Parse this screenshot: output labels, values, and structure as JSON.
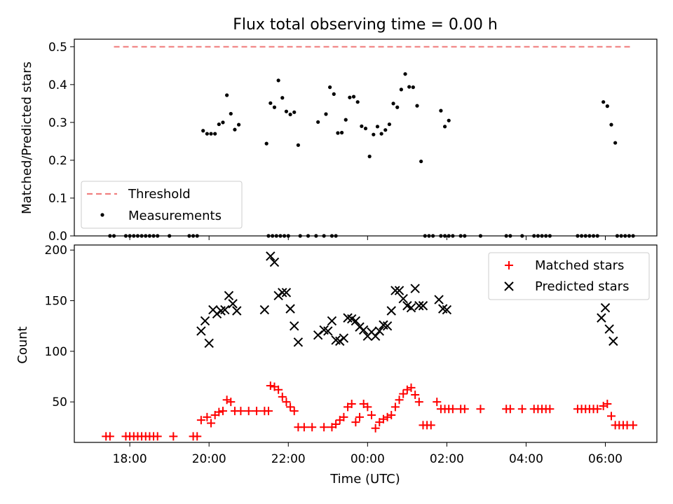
{
  "chart_data": {
    "title": "Flux total observing time = 0.00 h",
    "xlabel": "Time (UTC)",
    "x_unit": "hours relative to 00:00 UTC",
    "xlim": [
      -7.4,
      7.3
    ],
    "xticks": [
      {
        "value": -6,
        "label": "18:00"
      },
      {
        "value": -4,
        "label": "20:00"
      },
      {
        "value": -2,
        "label": "22:00"
      },
      {
        "value": 0,
        "label": "00:00"
      },
      {
        "value": 2,
        "label": "02:00"
      },
      {
        "value": 4,
        "label": "04:00"
      },
      {
        "value": 6,
        "label": "06:00"
      }
    ],
    "top": {
      "type": "scatter",
      "ylabel": "Matched/Predicted stars",
      "ylim": [
        0,
        0.52
      ],
      "yticks": [
        {
          "value": 0.0,
          "label": "0.0"
        },
        {
          "value": 0.1,
          "label": "0.1"
        },
        {
          "value": 0.2,
          "label": "0.2"
        },
        {
          "value": 0.3,
          "label": "0.3"
        },
        {
          "value": 0.4,
          "label": "0.4"
        },
        {
          "value": 0.5,
          "label": "0.5"
        }
      ],
      "legend": {
        "placement": "lower-left",
        "threshold_label": "Threshold",
        "measurements_label": "Measurements"
      },
      "threshold": {
        "name": "Threshold",
        "value": 0.5,
        "x_start": -6.4,
        "x_end": 6.7,
        "color": "#f08080"
      },
      "measurements": {
        "name": "Measurements",
        "color": "#000000",
        "points": [
          [
            -6.5,
            0
          ],
          [
            -6.4,
            0
          ],
          [
            -6.1,
            0
          ],
          [
            -6.0,
            0
          ],
          [
            -5.9,
            0
          ],
          [
            -5.8,
            0
          ],
          [
            -5.7,
            0
          ],
          [
            -5.6,
            0
          ],
          [
            -5.5,
            0
          ],
          [
            -5.4,
            0
          ],
          [
            -5.3,
            0
          ],
          [
            -5.0,
            0
          ],
          [
            -4.5,
            0
          ],
          [
            -4.4,
            0
          ],
          [
            -4.3,
            0
          ],
          [
            -4.15,
            0.278
          ],
          [
            -4.05,
            0.27
          ],
          [
            -3.95,
            0.27
          ],
          [
            -3.85,
            0.27
          ],
          [
            -3.75,
            0.295
          ],
          [
            -3.65,
            0.3
          ],
          [
            -3.55,
            0.372
          ],
          [
            -3.45,
            0.323
          ],
          [
            -3.35,
            0.281
          ],
          [
            -3.25,
            0.294
          ],
          [
            -2.5,
            0
          ],
          [
            -2.4,
            0
          ],
          [
            -2.3,
            0
          ],
          [
            -2.2,
            0
          ],
          [
            -2.1,
            0
          ],
          [
            -2.0,
            0
          ],
          [
            -2.55,
            0.244
          ],
          [
            -2.45,
            0.351
          ],
          [
            -2.35,
            0.34
          ],
          [
            -2.25,
            0.411
          ],
          [
            -2.15,
            0.365
          ],
          [
            -2.05,
            0.329
          ],
          [
            -1.95,
            0.321
          ],
          [
            -1.85,
            0.327
          ],
          [
            -1.75,
            0.24
          ],
          [
            -1.7,
            0
          ],
          [
            -1.5,
            0
          ],
          [
            -1.3,
            0
          ],
          [
            -1.1,
            0
          ],
          [
            -0.9,
            0
          ],
          [
            -0.8,
            0
          ],
          [
            -1.25,
            0.301
          ],
          [
            -1.05,
            0.322
          ],
          [
            -0.95,
            0.393
          ],
          [
            -0.85,
            0.375
          ],
          [
            -0.75,
            0.272
          ],
          [
            -0.65,
            0.273
          ],
          [
            -0.55,
            0.307
          ],
          [
            -0.45,
            0.366
          ],
          [
            -0.35,
            0.368
          ],
          [
            -0.25,
            0.354
          ],
          [
            -0.15,
            0.29
          ],
          [
            -0.05,
            0.284
          ],
          [
            0.05,
            0.21
          ],
          [
            0.15,
            0.268
          ],
          [
            0.25,
            0.289
          ],
          [
            0.35,
            0.27
          ],
          [
            0.45,
            0.28
          ],
          [
            0.55,
            0.295
          ],
          [
            0.65,
            0.35
          ],
          [
            0.75,
            0.34
          ],
          [
            0.85,
            0.387
          ],
          [
            0.95,
            0.428
          ],
          [
            1.05,
            0.394
          ],
          [
            1.15,
            0.393
          ],
          [
            1.25,
            0.344
          ],
          [
            1.35,
            0.197
          ],
          [
            1.45,
            0
          ],
          [
            1.55,
            0
          ],
          [
            1.65,
            0
          ],
          [
            1.85,
            0
          ],
          [
            1.95,
            0
          ],
          [
            2.05,
            0
          ],
          [
            2.15,
            0
          ],
          [
            2.35,
            0
          ],
          [
            2.45,
            0
          ],
          [
            2.85,
            0
          ],
          [
            3.5,
            0
          ],
          [
            3.6,
            0
          ],
          [
            3.9,
            0
          ],
          [
            4.2,
            0
          ],
          [
            4.3,
            0
          ],
          [
            4.4,
            0
          ],
          [
            4.5,
            0
          ],
          [
            4.6,
            0
          ],
          [
            1.85,
            0.331
          ],
          [
            1.95,
            0.289
          ],
          [
            2.05,
            0.305
          ],
          [
            5.3,
            0
          ],
          [
            5.4,
            0
          ],
          [
            5.5,
            0
          ],
          [
            5.6,
            0
          ],
          [
            5.7,
            0
          ],
          [
            5.8,
            0
          ],
          [
            5.95,
            0.354
          ],
          [
            6.05,
            0.343
          ],
          [
            6.15,
            0.294
          ],
          [
            6.25,
            0.246
          ],
          [
            6.3,
            0
          ],
          [
            6.4,
            0
          ],
          [
            6.5,
            0
          ],
          [
            6.6,
            0
          ],
          [
            6.7,
            0
          ]
        ]
      }
    },
    "bottom": {
      "type": "scatter",
      "ylabel": "Count",
      "ylim": [
        10,
        205
      ],
      "yticks": [
        {
          "value": 50,
          "label": "50"
        },
        {
          "value": 100,
          "label": "100"
        },
        {
          "value": 150,
          "label": "150"
        },
        {
          "value": 200,
          "label": "200"
        }
      ],
      "legend": {
        "placement": "upper-right",
        "matched_label": "Matched stars",
        "predicted_label": "Predicted stars"
      },
      "matched": {
        "name": "Matched stars",
        "color": "#ff0000",
        "points": [
          [
            -6.6,
            16
          ],
          [
            -6.5,
            16
          ],
          [
            -6.1,
            16
          ],
          [
            -6.0,
            16
          ],
          [
            -5.9,
            16
          ],
          [
            -5.8,
            16
          ],
          [
            -5.7,
            16
          ],
          [
            -5.6,
            16
          ],
          [
            -5.5,
            16
          ],
          [
            -5.4,
            16
          ],
          [
            -5.3,
            16
          ],
          [
            -4.9,
            16
          ],
          [
            -4.4,
            16
          ],
          [
            -4.3,
            16
          ],
          [
            -4.2,
            32
          ],
          [
            -4.05,
            35
          ],
          [
            -3.95,
            29
          ],
          [
            -3.85,
            37
          ],
          [
            -3.75,
            40
          ],
          [
            -3.65,
            41
          ],
          [
            -3.55,
            52
          ],
          [
            -3.45,
            50
          ],
          [
            -3.35,
            41
          ],
          [
            -3.2,
            41
          ],
          [
            -3.0,
            41
          ],
          [
            -2.8,
            41
          ],
          [
            -2.6,
            41
          ],
          [
            -2.5,
            41
          ],
          [
            -2.45,
            66
          ],
          [
            -2.35,
            65
          ],
          [
            -2.25,
            62
          ],
          [
            -2.15,
            55
          ],
          [
            -2.05,
            50
          ],
          [
            -1.95,
            45
          ],
          [
            -1.85,
            41
          ],
          [
            -1.75,
            25
          ],
          [
            -1.6,
            25
          ],
          [
            -1.4,
            25
          ],
          [
            -1.1,
            25
          ],
          [
            -0.9,
            25
          ],
          [
            -0.8,
            28
          ],
          [
            -0.7,
            32
          ],
          [
            -0.6,
            35
          ],
          [
            -0.5,
            45
          ],
          [
            -0.4,
            48
          ],
          [
            -0.3,
            30
          ],
          [
            -0.2,
            35
          ],
          [
            -0.1,
            48
          ],
          [
            0.0,
            45
          ],
          [
            0.1,
            37
          ],
          [
            0.2,
            24
          ],
          [
            0.3,
            30
          ],
          [
            0.4,
            33
          ],
          [
            0.5,
            35
          ],
          [
            0.6,
            37
          ],
          [
            0.7,
            45
          ],
          [
            0.8,
            52
          ],
          [
            0.9,
            58
          ],
          [
            1.0,
            62
          ],
          [
            1.1,
            64
          ],
          [
            1.2,
            57
          ],
          [
            1.3,
            50
          ],
          [
            1.4,
            27
          ],
          [
            1.5,
            27
          ],
          [
            1.6,
            27
          ],
          [
            1.75,
            50
          ],
          [
            1.85,
            43
          ],
          [
            1.95,
            43
          ],
          [
            2.05,
            43
          ],
          [
            2.15,
            43
          ],
          [
            2.35,
            43
          ],
          [
            2.45,
            43
          ],
          [
            2.85,
            43
          ],
          [
            3.5,
            43
          ],
          [
            3.6,
            43
          ],
          [
            3.9,
            43
          ],
          [
            4.2,
            43
          ],
          [
            4.3,
            43
          ],
          [
            4.4,
            43
          ],
          [
            4.5,
            43
          ],
          [
            4.6,
            43
          ],
          [
            5.3,
            43
          ],
          [
            5.4,
            43
          ],
          [
            5.5,
            43
          ],
          [
            5.6,
            43
          ],
          [
            5.7,
            43
          ],
          [
            5.8,
            43
          ],
          [
            5.95,
            46
          ],
          [
            6.05,
            48
          ],
          [
            6.15,
            36
          ],
          [
            6.25,
            27
          ],
          [
            6.35,
            27
          ],
          [
            6.45,
            27
          ],
          [
            6.55,
            27
          ],
          [
            6.7,
            27
          ]
        ]
      },
      "predicted": {
        "name": "Predicted stars",
        "color": "#000000",
        "points": [
          [
            -4.2,
            120
          ],
          [
            -4.1,
            130
          ],
          [
            -4.0,
            108
          ],
          [
            -3.9,
            141
          ],
          [
            -3.8,
            137
          ],
          [
            -3.7,
            140
          ],
          [
            -3.6,
            141
          ],
          [
            -3.5,
            155
          ],
          [
            -3.4,
            147
          ],
          [
            -3.3,
            140
          ],
          [
            -2.6,
            141
          ],
          [
            -2.45,
            194
          ],
          [
            -2.35,
            188
          ],
          [
            -2.25,
            155
          ],
          [
            -2.15,
            158
          ],
          [
            -2.05,
            158
          ],
          [
            -1.95,
            142
          ],
          [
            -1.85,
            125
          ],
          [
            -1.75,
            109
          ],
          [
            -1.25,
            116
          ],
          [
            -1.1,
            121
          ],
          [
            -1.0,
            120
          ],
          [
            -0.9,
            130
          ],
          [
            -0.8,
            111
          ],
          [
            -0.7,
            110
          ],
          [
            -0.6,
            113
          ],
          [
            -0.5,
            133
          ],
          [
            -0.4,
            132
          ],
          [
            -0.3,
            130
          ],
          [
            -0.2,
            124
          ],
          [
            -0.1,
            121
          ],
          [
            0.0,
            115
          ],
          [
            0.1,
            119
          ],
          [
            0.2,
            115
          ],
          [
            0.3,
            120
          ],
          [
            0.4,
            126
          ],
          [
            0.5,
            125
          ],
          [
            0.6,
            140
          ],
          [
            0.7,
            160
          ],
          [
            0.8,
            160
          ],
          [
            0.9,
            152
          ],
          [
            1.0,
            145
          ],
          [
            1.1,
            143
          ],
          [
            1.2,
            162
          ],
          [
            1.3,
            145
          ],
          [
            1.4,
            145
          ],
          [
            1.8,
            151
          ],
          [
            1.9,
            142
          ],
          [
            2.0,
            141
          ],
          [
            5.9,
            133
          ],
          [
            6.0,
            143
          ],
          [
            6.1,
            122
          ],
          [
            6.2,
            110
          ]
        ]
      }
    }
  }
}
